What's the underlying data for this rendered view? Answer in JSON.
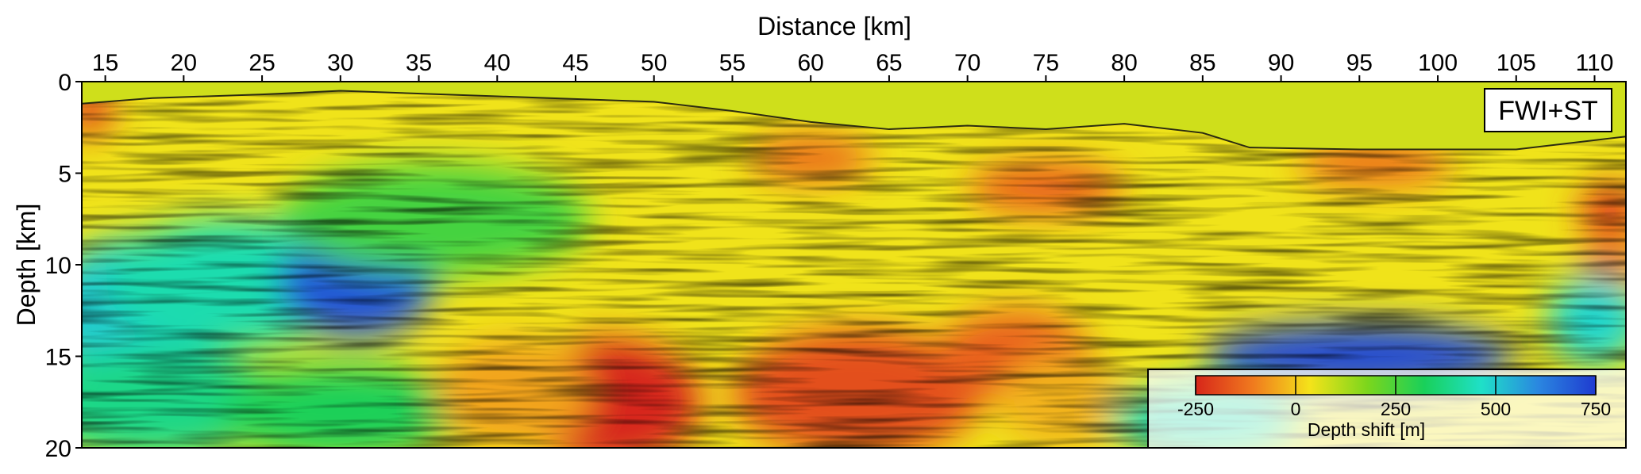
{
  "chart_data": {
    "type": "heatmap",
    "title": "",
    "xlabel": "Distance [km]",
    "ylabel": "Depth [km]",
    "annotation": "FWI+ST",
    "x_axis_position": "top",
    "xlim": [
      13.5,
      112
    ],
    "ylim": [
      0,
      20
    ],
    "y_inverted": true,
    "xticks": [
      15,
      20,
      25,
      30,
      35,
      40,
      45,
      50,
      55,
      60,
      65,
      70,
      75,
      80,
      85,
      90,
      95,
      100,
      105,
      110
    ],
    "yticks": [
      0,
      5,
      10,
      15,
      20
    ],
    "grid": false,
    "colorbar": {
      "label": "Depth shift [m]",
      "range": [
        -250,
        750
      ],
      "ticks": [
        -250,
        0,
        250,
        500,
        750
      ],
      "colors": [
        "#d7261a",
        "#f07a1e",
        "#f4e31a",
        "#7cd61c",
        "#19d05a",
        "#1fe0c8",
        "#2a86e0",
        "#1f3bd0"
      ],
      "placement": "lower-right"
    },
    "background_fill_shift": 40,
    "seafloor_profile": [
      {
        "x": 13.5,
        "depth": 1.2
      },
      {
        "x": 18,
        "depth": 0.9
      },
      {
        "x": 25,
        "depth": 0.7
      },
      {
        "x": 30,
        "depth": 0.5
      },
      {
        "x": 40,
        "depth": 0.8
      },
      {
        "x": 50,
        "depth": 1.1
      },
      {
        "x": 55,
        "depth": 1.6
      },
      {
        "x": 60,
        "depth": 2.2
      },
      {
        "x": 65,
        "depth": 2.6
      },
      {
        "x": 70,
        "depth": 2.4
      },
      {
        "x": 75,
        "depth": 2.6
      },
      {
        "x": 80,
        "depth": 2.3
      },
      {
        "x": 85,
        "depth": 2.8
      },
      {
        "x": 88,
        "depth": 3.6
      },
      {
        "x": 95,
        "depth": 3.7
      },
      {
        "x": 100,
        "depth": 3.7
      },
      {
        "x": 105,
        "depth": 3.7
      },
      {
        "x": 112,
        "depth": 3.0
      }
    ],
    "anomalies": [
      {
        "x": 17,
        "depth": 12.5,
        "rx": 6,
        "ry": 4.0,
        "shift": 500
      },
      {
        "x": 23,
        "depth": 11,
        "rx": 8,
        "ry": 3.5,
        "shift": 430
      },
      {
        "x": 31,
        "depth": 11,
        "rx": 5,
        "ry": 3.0,
        "shift": 700
      },
      {
        "x": 18,
        "depth": 17.5,
        "rx": 8,
        "ry": 3.0,
        "shift": 380
      },
      {
        "x": 30,
        "depth": 18,
        "rx": 8,
        "ry": 2.5,
        "shift": 320
      },
      {
        "x": 47,
        "depth": 17.5,
        "rx": 6,
        "ry": 3.5,
        "shift": -250
      },
      {
        "x": 41,
        "depth": 17,
        "rx": 5,
        "ry": 3.0,
        "shift": -50
      },
      {
        "x": 63,
        "depth": 17,
        "rx": 8,
        "ry": 3.5,
        "shift": -180
      },
      {
        "x": 73,
        "depth": 15,
        "rx": 5,
        "ry": 2.5,
        "shift": -150
      },
      {
        "x": 76,
        "depth": 17.5,
        "rx": 4,
        "ry": 2.5,
        "shift": -30
      },
      {
        "x": 60,
        "depth": 4.2,
        "rx": 4,
        "ry": 1.2,
        "shift": -140
      },
      {
        "x": 75,
        "depth": 5.8,
        "rx": 5,
        "ry": 1.4,
        "shift": -150
      },
      {
        "x": 96,
        "depth": 4.5,
        "rx": 5,
        "ry": 1.2,
        "shift": -130
      },
      {
        "x": 111,
        "depth": 7.0,
        "rx": 2,
        "ry": 1.5,
        "shift": -200
      },
      {
        "x": 111,
        "depth": 10.0,
        "rx": 2,
        "ry": 1.2,
        "shift": -150
      },
      {
        "x": 14,
        "depth": 1.5,
        "rx": 1.5,
        "ry": 1.5,
        "shift": -200
      },
      {
        "x": 95,
        "depth": 15,
        "rx": 10,
        "ry": 1.8,
        "shift": 720
      },
      {
        "x": 110,
        "depth": 13,
        "rx": 3,
        "ry": 2.5,
        "shift": 480
      },
      {
        "x": 85,
        "depth": 18.5,
        "rx": 6,
        "ry": 2.0,
        "shift": 430
      },
      {
        "x": 36,
        "depth": 7.5,
        "rx": 10,
        "ry": 3.0,
        "shift": 260
      }
    ]
  }
}
